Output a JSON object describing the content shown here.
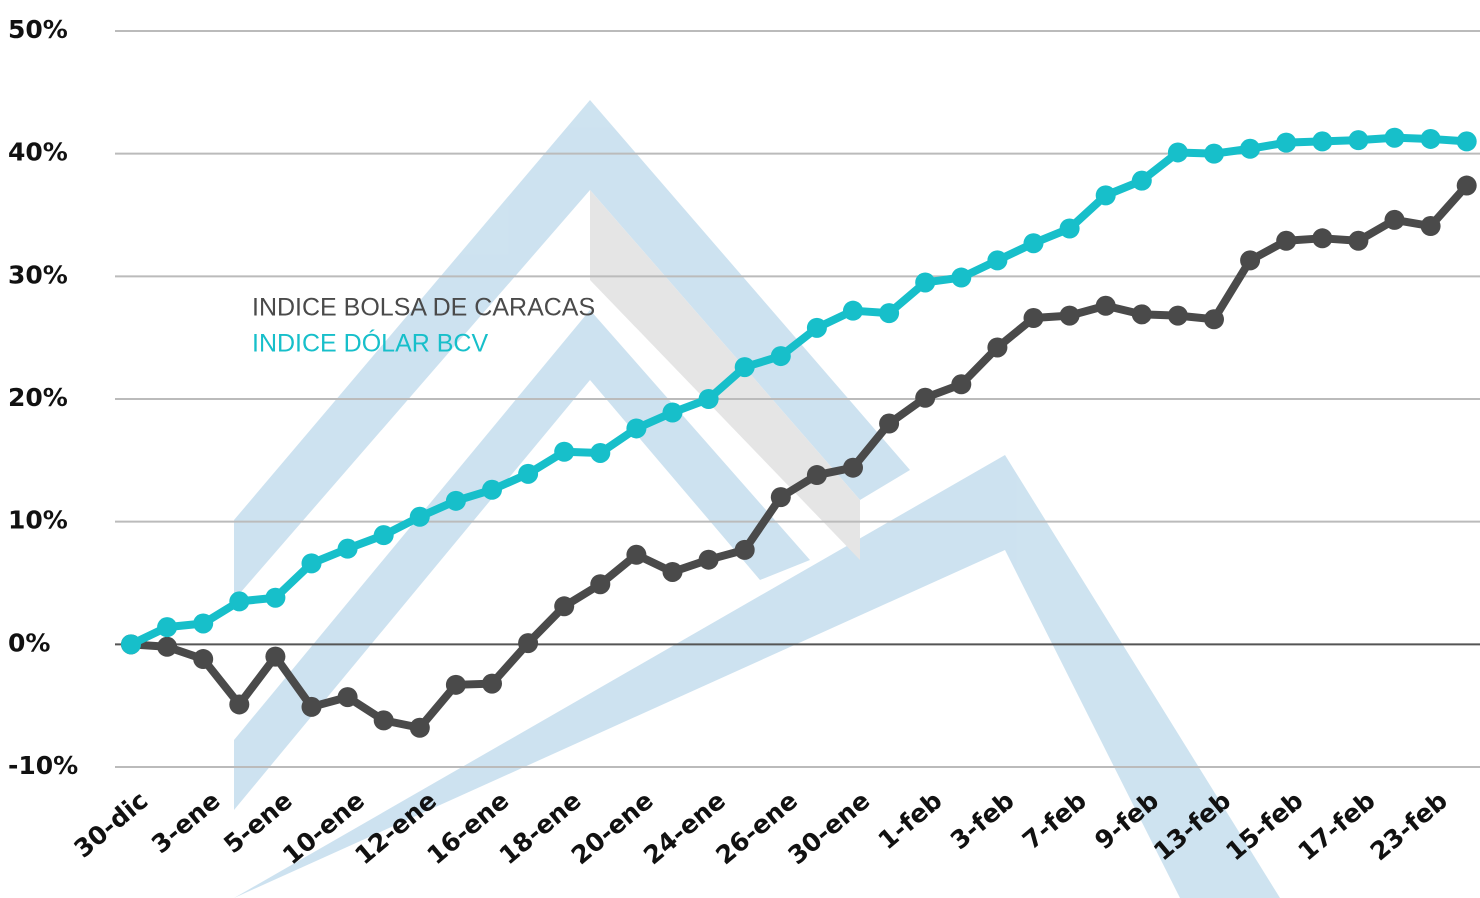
{
  "chart_data": {
    "type": "line",
    "categories": [
      "30-dic",
      null,
      "3-ene",
      null,
      "5-ene",
      null,
      "10-ene",
      null,
      "12-ene",
      null,
      "16-ene",
      null,
      "18-ene",
      null,
      "20-ene",
      null,
      "24-ene",
      null,
      "26-ene",
      null,
      "30-ene",
      null,
      "1-feb",
      null,
      "3-feb",
      null,
      "7-feb",
      null,
      "9-feb",
      null,
      "13-feb",
      null,
      "15-feb",
      null,
      "17-feb",
      null,
      "23-feb",
      null
    ],
    "series": [
      {
        "name": "INDICE BOLSA DE CARACAS",
        "color": "#4a4a4a",
        "values": [
          0,
          -0.2,
          -1.2,
          -4.9,
          -1.0,
          -5.1,
          -4.3,
          -6.2,
          -6.8,
          -3.3,
          -3.2,
          0.1,
          3.1,
          4.9,
          7.3,
          5.9,
          6.9,
          7.7,
          12.0,
          13.8,
          14.4,
          18.0,
          20.1,
          21.2,
          24.2,
          26.6,
          26.8,
          27.6,
          26.9,
          26.8,
          26.5,
          31.3,
          32.9,
          33.1,
          32.9,
          34.6,
          34.1,
          37.4
        ]
      },
      {
        "name": "INDICE DÓLAR BCV",
        "color": "#17bfca",
        "values": [
          0,
          1.4,
          1.7,
          3.5,
          3.8,
          6.6,
          7.8,
          8.9,
          10.4,
          11.7,
          12.6,
          13.9,
          15.7,
          15.6,
          17.6,
          18.9,
          20.0,
          22.6,
          23.5,
          25.8,
          27.2,
          27.0,
          29.5,
          29.9,
          31.3,
          32.7,
          33.9,
          36.6,
          37.8,
          40.1,
          40.0,
          40.4,
          40.9,
          41.0,
          41.1,
          41.3,
          41.2,
          41.0
        ]
      }
    ],
    "ylim": [
      -10,
      50
    ],
    "yticks": [
      {
        "value": -10,
        "label": "-10%"
      },
      {
        "value": 0,
        "label": "0%"
      },
      {
        "value": 10,
        "label": "10%"
      },
      {
        "value": 20,
        "label": "20%"
      },
      {
        "value": 30,
        "label": "30%"
      },
      {
        "value": 40,
        "label": "40%"
      },
      {
        "value": 50,
        "label": "50%"
      }
    ],
    "grid": true
  }
}
